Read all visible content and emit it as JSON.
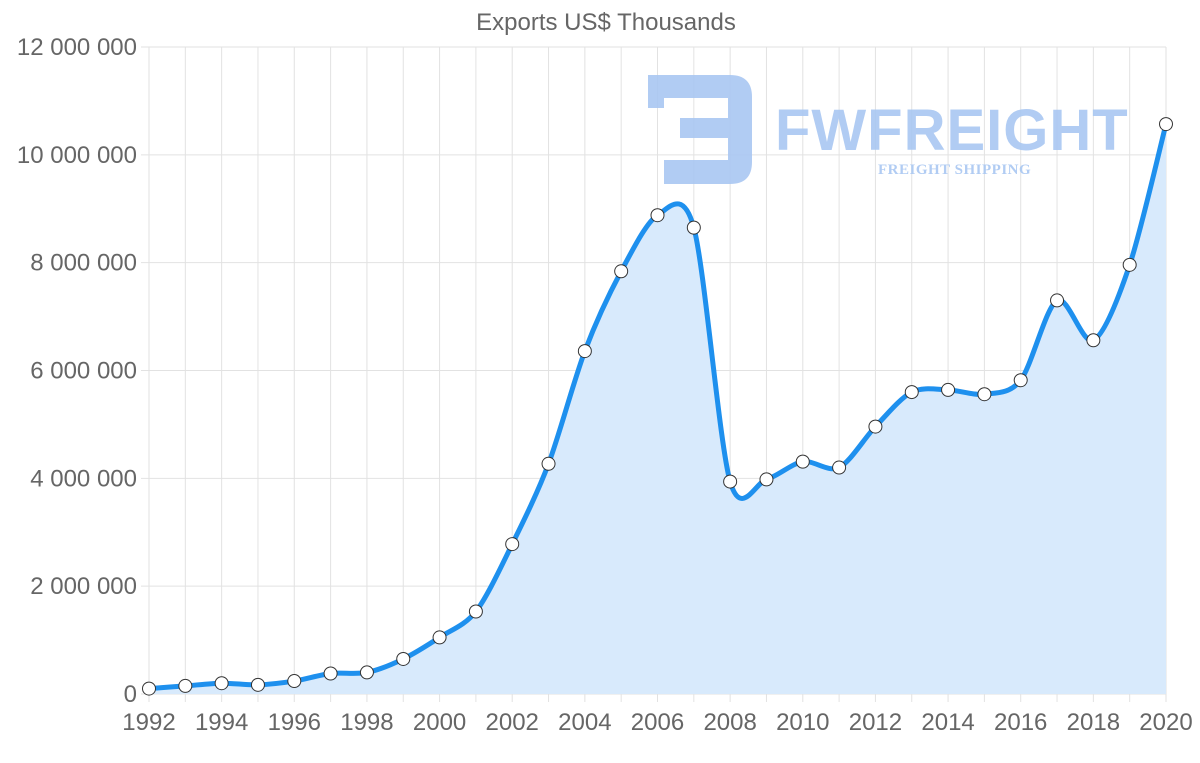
{
  "chart_data": {
    "type": "area",
    "title": "Exports US$ Thousands",
    "xlabel": "",
    "ylabel": "",
    "x": [
      1992,
      1993,
      1994,
      1995,
      1996,
      1997,
      1998,
      1999,
      2000,
      2001,
      2002,
      2003,
      2004,
      2005,
      2006,
      2007,
      2008,
      2009,
      2010,
      2011,
      2012,
      2013,
      2014,
      2015,
      2016,
      2017,
      2018,
      2019,
      2020
    ],
    "values": [
      100000,
      150000,
      200000,
      170000,
      240000,
      380000,
      400000,
      650000,
      1050000,
      1530000,
      2780000,
      4270000,
      6360000,
      7840000,
      8880000,
      8650000,
      3940000,
      3980000,
      4310000,
      4200000,
      4960000,
      5600000,
      5640000,
      5560000,
      5820000,
      7300000,
      6560000,
      7960000,
      10570000
    ],
    "ylim": [
      0,
      12000000
    ],
    "xlim": [
      1992,
      2020
    ],
    "y_ticks": [
      {
        "value": 0,
        "label": "0"
      },
      {
        "value": 2000000,
        "label": "2 000 000"
      },
      {
        "value": 4000000,
        "label": "4 000 000"
      },
      {
        "value": 6000000,
        "label": "6 000 000"
      },
      {
        "value": 8000000,
        "label": "8 000 000"
      },
      {
        "value": 10000000,
        "label": "10 000 000"
      },
      {
        "value": 12000000,
        "label": "12 000 000"
      }
    ],
    "x_tick_labels": [
      "1992",
      "1994",
      "1996",
      "1998",
      "2000",
      "2002",
      "2004",
      "2006",
      "2008",
      "2010",
      "2012",
      "2014",
      "2016",
      "2018",
      "2020"
    ],
    "grid": true,
    "legend": "none"
  },
  "colors": {
    "line": "#1e90ee",
    "fill": "#d8eafc",
    "marker_fill": "#ffffff",
    "marker_stroke": "#333333",
    "watermark": "#a9c7f2"
  },
  "watermark": {
    "brand": "FWFREIGHT",
    "tagline": "FREIGHT SHIPPING"
  }
}
